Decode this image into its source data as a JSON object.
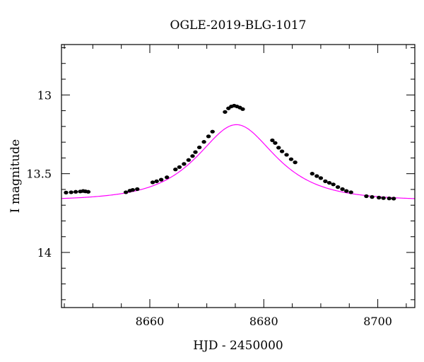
{
  "chart_data": {
    "type": "scatter",
    "title": "OGLE-2019-BLG-1017",
    "xlabel": "HJD - 2450000",
    "ylabel": "I magnitude",
    "xlim": [
      8644.5,
      8706.5
    ],
    "ylim": [
      14.35,
      12.68
    ],
    "y_inverted": true,
    "x_ticks": [
      8660,
      8680,
      8700
    ],
    "x_minor_step": 5,
    "y_ticks": [
      13,
      13.5,
      14
    ],
    "y_tick_labels": [
      "13",
      "13.5",
      "14"
    ],
    "y_minor_step": 0.1,
    "grid": false,
    "legend": "none",
    "colors": {
      "points": "#000000",
      "model": "#ff00ff",
      "frame": "#000000"
    },
    "series": [
      {
        "kind": "points",
        "x": [
          8645.3,
          8646.2,
          8647.0,
          8647.8,
          8648.3,
          8648.7,
          8649.2,
          8655.8,
          8656.5,
          8657.0,
          8657.8,
          8660.5,
          8661.2,
          8662.0,
          8663.0,
          8664.5,
          8665.2,
          8666.0,
          8666.8,
          8667.5,
          8668.0,
          8668.7,
          8669.5,
          8670.3,
          8671.0,
          8673.2,
          8673.8,
          8674.3,
          8674.8,
          8675.3,
          8675.8,
          8676.3,
          8681.5,
          8682.0,
          8682.6,
          8683.2,
          8684.0,
          8684.8,
          8685.5,
          8688.5,
          8689.3,
          8690.0,
          8690.8,
          8691.5,
          8692.2,
          8693.0,
          8693.8,
          8694.5,
          8695.3,
          8698.0,
          8699.0,
          8700.2,
          8701.0,
          8702.0,
          8702.8
        ],
        "y": [
          13.62,
          13.618,
          13.615,
          13.613,
          13.61,
          13.612,
          13.615,
          13.618,
          13.608,
          13.603,
          13.598,
          13.555,
          13.548,
          13.538,
          13.523,
          13.473,
          13.458,
          13.438,
          13.413,
          13.388,
          13.363,
          13.333,
          13.298,
          13.263,
          13.233,
          13.108,
          13.085,
          13.073,
          13.068,
          13.073,
          13.08,
          13.09,
          13.288,
          13.305,
          13.335,
          13.358,
          13.38,
          13.408,
          13.428,
          13.5,
          13.515,
          13.528,
          13.548,
          13.558,
          13.568,
          13.585,
          13.598,
          13.61,
          13.618,
          13.643,
          13.648,
          13.652,
          13.655,
          13.657,
          13.658
        ]
      },
      {
        "kind": "model",
        "model": "point-lens",
        "t0": 8675.2,
        "tE": 9.4,
        "u0": 0.78,
        "I_base": 13.67
      }
    ]
  }
}
